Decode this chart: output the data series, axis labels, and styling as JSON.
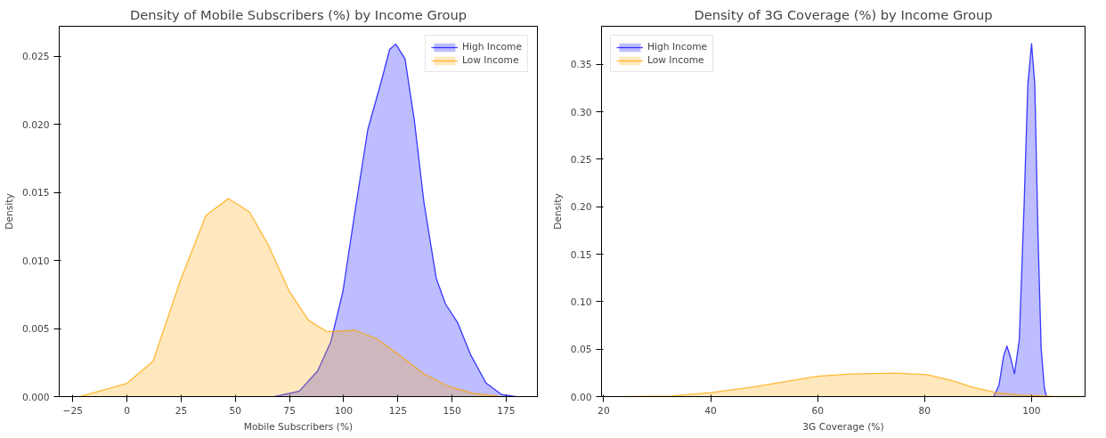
{
  "chart_data": [
    {
      "type": "area",
      "title": "Density of Mobile Subscribers (%) by Income Group",
      "xlabel": "Mobile Subscribers (%)",
      "ylabel": "Density",
      "xlim": [
        -31.3,
        189.4
      ],
      "ylim": [
        0,
        0.0272
      ],
      "xticks": [
        -25,
        0,
        25,
        50,
        75,
        100,
        125,
        150,
        175
      ],
      "yticks": [
        {
          "value": 0,
          "label": "0.000"
        },
        {
          "value": 0.005,
          "label": "0.005"
        },
        {
          "value": 0.01,
          "label": "0.010"
        },
        {
          "value": 0.015,
          "label": "0.015"
        },
        {
          "value": 0.02,
          "label": "0.020"
        },
        {
          "value": 0.025,
          "label": "0.025"
        }
      ],
      "grid": false,
      "legend": "top right",
      "series": [
        {
          "name": "High Income",
          "color": "#0000ff",
          "x": [
            68,
            79.5,
            88,
            94,
            99.6,
            105.4,
            111.1,
            116.9,
            121.2,
            124,
            128.3,
            132.6,
            137,
            142.7,
            147,
            152.7,
            158.5,
            165.7,
            172.8,
            179.3
          ],
          "values": [
            0,
            0.0004,
            0.0019,
            0.004,
            0.0077,
            0.0138,
            0.0196,
            0.0229,
            0.0255,
            0.0259,
            0.0248,
            0.0203,
            0.0143,
            0.0087,
            0.0068,
            0.0054,
            0.0031,
            0.001,
            0.00016,
            0
          ]
        },
        {
          "name": "Low Income",
          "color": "#ffa500",
          "x": [
            -21.7,
            0,
            12,
            25,
            36.4,
            46.8,
            56.5,
            65,
            75,
            83.8,
            92.4,
            105.4,
            115.4,
            125.5,
            137,
            148.4,
            160,
            172.8
          ],
          "values": [
            0,
            0.00098,
            0.0026,
            0.0087,
            0.0133,
            0.01455,
            0.01357,
            0.0112,
            0.0077,
            0.0056,
            0.00476,
            0.00487,
            0.00424,
            0.00308,
            0.00168,
            0.00075,
            0.00023,
            0
          ]
        }
      ]
    },
    {
      "type": "area",
      "title": "Density of 3G Coverage (%) by Income Group",
      "xlabel": "3G Coverage (%)",
      "ylabel": "Density",
      "xlim": [
        19.6,
        110
      ],
      "ylim": [
        0,
        0.39
      ],
      "xticks": [
        20,
        40,
        60,
        80,
        100
      ],
      "yticks": [
        {
          "value": 0,
          "label": "0.00"
        },
        {
          "value": 0.05,
          "label": "0.05"
        },
        {
          "value": 0.1,
          "label": "0.10"
        },
        {
          "value": 0.15,
          "label": "0.15"
        },
        {
          "value": 0.2,
          "label": "0.20"
        },
        {
          "value": 0.25,
          "label": "0.25"
        },
        {
          "value": 0.3,
          "label": "0.30"
        },
        {
          "value": 0.35,
          "label": "0.35"
        }
      ],
      "grid": false,
      "legend": "top left",
      "series": [
        {
          "name": "High Income",
          "color": "#0000ff",
          "x": [
            92.9,
            93.9,
            94.8,
            95.4,
            96.1,
            96.8,
            97.7,
            98.6,
            99.3,
            100,
            100.6,
            101.2,
            101.8,
            102.4,
            102.8
          ],
          "values": [
            0,
            0.012,
            0.0437,
            0.0532,
            0.0406,
            0.0241,
            0.0596,
            0.202,
            0.329,
            0.3717,
            0.329,
            0.17,
            0.05,
            0.0089,
            0
          ]
        },
        {
          "name": "Low Income",
          "color": "#ffa500",
          "x": [
            23.8,
            32.6,
            40.2,
            48.3,
            54.2,
            60,
            65.9,
            74.6,
            80.5,
            85.2,
            89.2,
            93.3,
            98,
            103.9,
            109.7
          ],
          "values": [
            0,
            0.0006,
            0.0044,
            0.0105,
            0.016,
            0.0215,
            0.0238,
            0.0247,
            0.0231,
            0.0168,
            0.0095,
            0.0044,
            0.0016,
            0.0003,
            0
          ]
        }
      ]
    }
  ]
}
